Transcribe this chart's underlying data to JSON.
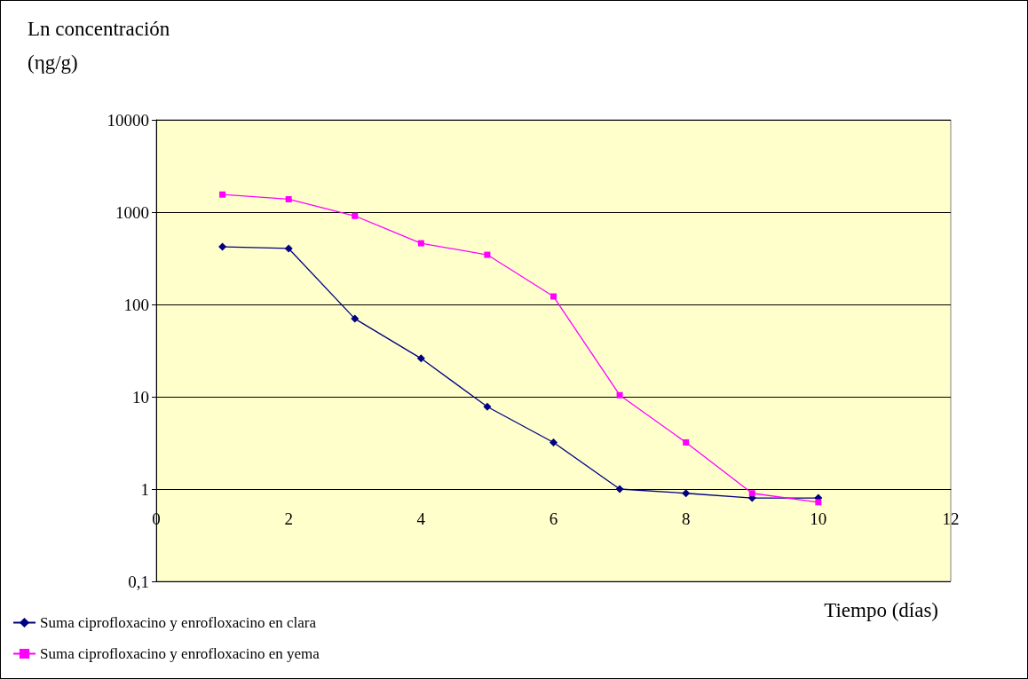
{
  "chart_data": {
    "type": "line",
    "ylabel": "Ln concentración (ηg/g)",
    "xlabel": "Tiempo (días)",
    "log": "y",
    "xlim": [
      0,
      12
    ],
    "xticks": [
      0,
      2,
      4,
      6,
      8,
      10,
      12
    ],
    "ylim": [
      0.1,
      10000
    ],
    "yticks": [
      {
        "value": 0.1,
        "label": "0,1"
      },
      1,
      10,
      100,
      1000,
      10000
    ],
    "grid": "y",
    "legend": "bottom left",
    "series": [
      {
        "name": "Suma ciprofloxacino y enrofloxacino en clara",
        "color": "#000080",
        "marker": "diamond",
        "x": [
          1,
          2,
          3,
          4,
          5,
          6,
          7,
          8,
          9,
          10
        ],
        "values": [
          422,
          404,
          70,
          26,
          7.8,
          3.2,
          1,
          0.9,
          0.8,
          0.8
        ]
      },
      {
        "name": "Suma ciprofloxacino y enrofloxacino en yema",
        "color": "#ff00ff",
        "marker": "square",
        "x": [
          1,
          2,
          3,
          4,
          5,
          6,
          7,
          8,
          9,
          10
        ],
        "values": [
          1550,
          1380,
          910,
          460,
          345,
          122,
          10.4,
          3.2,
          0.9,
          0.72
        ]
      }
    ]
  }
}
